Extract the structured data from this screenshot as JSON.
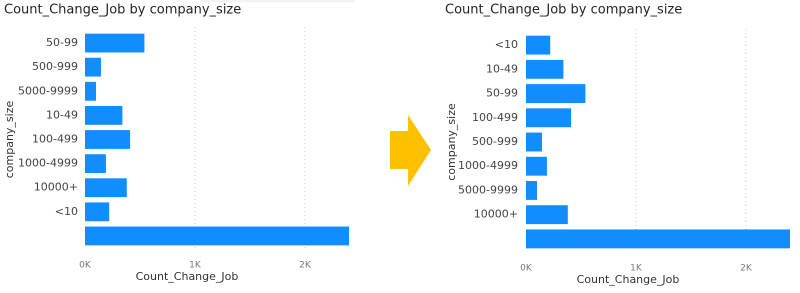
{
  "chart_data": [
    {
      "type": "bar",
      "title": "Count_Change_Job by company_size",
      "x_label": "Count_Change_Job",
      "y_label": "company_size",
      "categories": [
        "50-99",
        "500-999",
        "5000-9999",
        "10-49",
        "100-499",
        "1000-4999",
        "10000+",
        "<10",
        null
      ],
      "values": [
        540,
        145,
        100,
        340,
        410,
        190,
        380,
        220,
        2400
      ],
      "color": "#118DFF",
      "xlim": [
        0,
        2400
      ],
      "xticks": [
        {
          "value": 0,
          "label": "0K"
        },
        {
          "value": 1000,
          "label": "1K"
        },
        {
          "value": 2000,
          "label": "2K"
        }
      ],
      "grid": true
    },
    {
      "type": "bar",
      "title": "Count_Change_Job by company_size",
      "x_label": "Count_Change_Job",
      "y_label": "company_size",
      "categories": [
        "<10",
        "10-49",
        "50-99",
        "100-499",
        "500-999",
        "1000-4999",
        "5000-9999",
        "10000+",
        null
      ],
      "values": [
        220,
        340,
        540,
        410,
        145,
        190,
        100,
        380,
        2400
      ],
      "color": "#118DFF",
      "xlim": [
        0,
        2400
      ],
      "xticks": [
        {
          "value": 0,
          "label": "0K"
        },
        {
          "value": 1000,
          "label": "1K"
        },
        {
          "value": 2000,
          "label": "2K"
        }
      ],
      "grid": true
    }
  ]
}
